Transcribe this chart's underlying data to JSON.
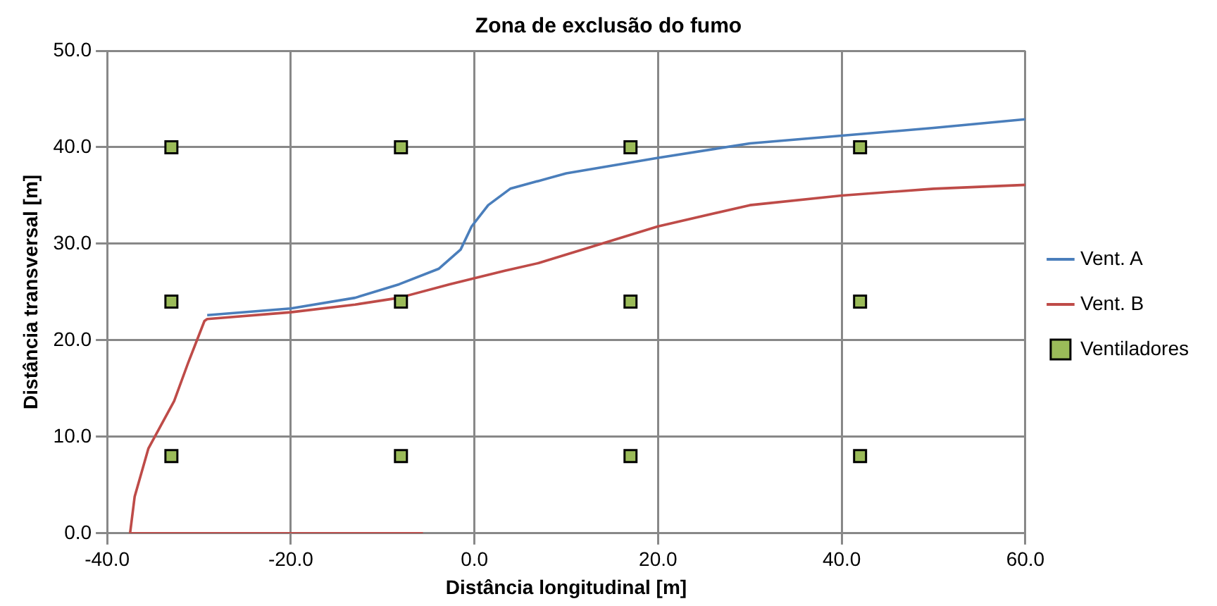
{
  "chart_data": {
    "type": "line",
    "title": "Zona de exclusão do fumo",
    "xlabel": "Distância longitudinal [m]",
    "ylabel": "Distância transversal [m]",
    "xlim": [
      -40,
      60
    ],
    "xticks": [
      {
        "value": -40,
        "label": "-40.0"
      },
      {
        "value": -20,
        "label": "-20.0"
      },
      {
        "value": 0,
        "label": "0.0"
      },
      {
        "value": 20,
        "label": "20.0"
      },
      {
        "value": 40,
        "label": "40.0"
      },
      {
        "value": 60,
        "label": "60.0"
      }
    ],
    "ylim": [
      0,
      50
    ],
    "yticks": [
      {
        "value": 0,
        "label": "0.0"
      },
      {
        "value": 10,
        "label": "10.0"
      },
      {
        "value": 20,
        "label": "20.0"
      },
      {
        "value": 30,
        "label": "30.0"
      },
      {
        "value": 40,
        "label": "40.0"
      },
      {
        "value": 50,
        "label": "50.0"
      }
    ],
    "grid": true,
    "legend": "right",
    "marker": "none",
    "line_style": "solid",
    "series": [
      {
        "name": "Vent. A",
        "type": "line",
        "color": "#4a7ebb",
        "x": [
          -29.1,
          -20,
          -13,
          -8.2,
          -3.9,
          -1.5,
          -0.3,
          1.5,
          3.9,
          10,
          20,
          30,
          40,
          50,
          60
        ],
        "values": [
          22.6,
          23.3,
          24.4,
          25.8,
          27.4,
          29.4,
          31.8,
          34.0,
          35.7,
          37.3,
          38.9,
          40.4,
          41.2,
          42.0,
          42.9
        ]
      },
      {
        "name": "Vent. B",
        "type": "line",
        "color": "#be4b48",
        "x": [
          -5.6,
          -37.5,
          -37.0,
          -35.5,
          -32.7,
          -31.2,
          -29.4,
          -29.1,
          -20,
          -13,
          -8.2,
          -2.7,
          3.3,
          7,
          20,
          30,
          40,
          50,
          60
        ],
        "values": [
          0,
          0,
          3.8,
          8.8,
          13.7,
          17.6,
          22.0,
          22.2,
          22.9,
          23.7,
          24.4,
          25.8,
          27.2,
          28.0,
          31.8,
          34.0,
          35.0,
          35.7,
          36.1
        ]
      },
      {
        "name": "Ventiladores",
        "type": "scatter",
        "marker": "square",
        "color": "#9bbb59",
        "x": [
          -33,
          -8,
          17,
          42,
          -33,
          -8,
          17,
          42,
          -33,
          -8,
          17,
          42
        ],
        "values": [
          40,
          40,
          40,
          40,
          24,
          24,
          24,
          24,
          8,
          8,
          8,
          8
        ]
      }
    ]
  }
}
